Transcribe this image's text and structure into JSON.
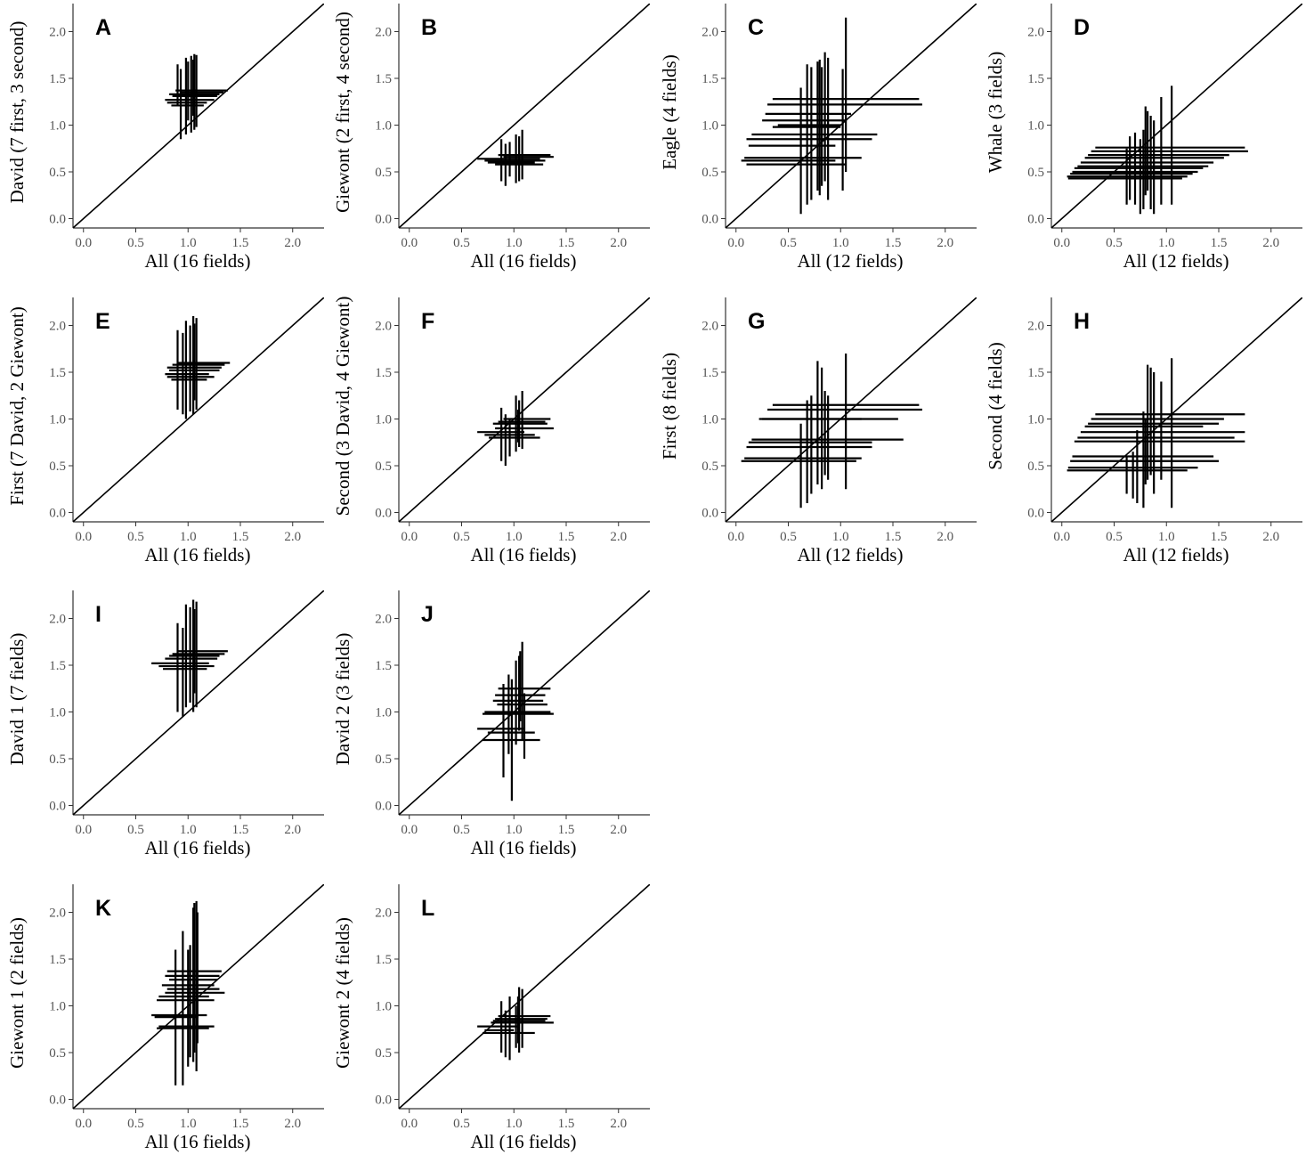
{
  "figure": {
    "description_panels": 12
  },
  "axis_defaults": {
    "xlim": [
      -0.1,
      2.3
    ],
    "ylim": [
      -0.1,
      2.3
    ],
    "ticks": [
      0.0,
      0.5,
      1.0,
      1.5,
      2.0
    ],
    "tick_labels": [
      "0.0",
      "0.5",
      "1.0",
      "1.5",
      "2.0"
    ]
  },
  "colors": {
    "ink": "#000000",
    "axis": "#333333",
    "tick_text": "#555555"
  },
  "chart_data": [
    {
      "id": "A",
      "type": "scatter",
      "letter": "A",
      "xlabel": "All (16 fields)",
      "ylabel": "David (7 first, 3 second)",
      "diagonal": "y = x",
      "hbars": [
        [
          0.88,
          1.38,
          1.37
        ],
        [
          0.92,
          1.34,
          1.35
        ],
        [
          0.82,
          1.3,
          1.33
        ],
        [
          0.85,
          1.28,
          1.31
        ],
        [
          0.78,
          1.25,
          1.27
        ],
        [
          0.8,
          1.18,
          1.24
        ],
        [
          0.84,
          1.15,
          1.21
        ]
      ],
      "vbars": [
        [
          0.9,
          1.2,
          1.65
        ],
        [
          0.93,
          0.85,
          1.6
        ],
        [
          0.98,
          0.9,
          1.72
        ],
        [
          1.0,
          1.05,
          1.68
        ],
        [
          1.03,
          0.92,
          1.74
        ],
        [
          1.06,
          0.95,
          1.76
        ],
        [
          1.08,
          0.98,
          1.75
        ],
        [
          1.05,
          1.1,
          1.7
        ]
      ]
    },
    {
      "id": "B",
      "type": "scatter",
      "letter": "B",
      "xlabel": "All (16 fields)",
      "ylabel": "Giewont (2 first, 4 second)",
      "diagonal": "y = x",
      "hbars": [
        [
          0.85,
          1.35,
          0.68
        ],
        [
          0.9,
          1.38,
          0.66
        ],
        [
          0.65,
          1.25,
          0.64
        ],
        [
          0.72,
          1.3,
          0.62
        ],
        [
          0.75,
          1.2,
          0.6
        ],
        [
          0.82,
          1.28,
          0.58
        ]
      ],
      "vbars": [
        [
          0.88,
          0.4,
          0.85
        ],
        [
          0.92,
          0.35,
          0.8
        ],
        [
          0.96,
          0.45,
          0.82
        ],
        [
          1.02,
          0.38,
          0.9
        ],
        [
          1.05,
          0.4,
          0.88
        ],
        [
          1.08,
          0.42,
          0.95
        ]
      ]
    },
    {
      "id": "C",
      "type": "scatter",
      "letter": "C",
      "xlabel": "All (12 fields)",
      "ylabel": "Eagle (4 fields)",
      "diagonal": "y = x",
      "hbars": [
        [
          0.35,
          1.75,
          1.28
        ],
        [
          0.3,
          1.78,
          1.22
        ],
        [
          0.28,
          1.1,
          1.12
        ],
        [
          0.25,
          1.05,
          1.05
        ],
        [
          0.4,
          1.0,
          1.0
        ],
        [
          0.35,
          1.0,
          0.98
        ],
        [
          0.15,
          1.35,
          0.9
        ],
        [
          0.1,
          1.3,
          0.85
        ],
        [
          0.12,
          0.95,
          0.78
        ],
        [
          0.08,
          1.2,
          0.65
        ],
        [
          0.05,
          0.95,
          0.62
        ],
        [
          0.1,
          1.05,
          0.58
        ]
      ],
      "vbars": [
        [
          0.62,
          0.05,
          1.4
        ],
        [
          0.68,
          0.15,
          1.65
        ],
        [
          0.72,
          0.2,
          1.62
        ],
        [
          0.78,
          0.3,
          1.68
        ],
        [
          0.8,
          0.25,
          1.7
        ],
        [
          0.82,
          0.35,
          1.62
        ],
        [
          0.85,
          0.4,
          1.78
        ],
        [
          0.88,
          0.2,
          1.72
        ],
        [
          1.02,
          0.3,
          1.6
        ],
        [
          1.05,
          0.5,
          2.15
        ]
      ]
    },
    {
      "id": "D",
      "type": "scatter",
      "letter": "D",
      "xlabel": "All (12 fields)",
      "ylabel": "Whale (3 fields)",
      "diagonal": "y = x",
      "hbars": [
        [
          0.32,
          1.75,
          0.76
        ],
        [
          0.28,
          1.78,
          0.72
        ],
        [
          0.25,
          1.6,
          0.68
        ],
        [
          0.22,
          1.55,
          0.65
        ],
        [
          0.18,
          1.45,
          0.6
        ],
        [
          0.15,
          1.4,
          0.56
        ],
        [
          0.12,
          1.35,
          0.54
        ],
        [
          0.1,
          1.3,
          0.5
        ],
        [
          0.08,
          1.25,
          0.48
        ],
        [
          0.05,
          1.2,
          0.45
        ],
        [
          0.06,
          1.15,
          0.43
        ]
      ],
      "vbars": [
        [
          0.62,
          0.15,
          0.75
        ],
        [
          0.65,
          0.2,
          0.88
        ],
        [
          0.7,
          0.15,
          0.92
        ],
        [
          0.75,
          0.05,
          0.85
        ],
        [
          0.78,
          0.1,
          0.95
        ],
        [
          0.8,
          0.25,
          1.2
        ],
        [
          0.82,
          0.3,
          1.15
        ],
        [
          0.85,
          0.1,
          1.1
        ],
        [
          0.88,
          0.05,
          1.05
        ],
        [
          0.95,
          0.15,
          1.3
        ],
        [
          1.05,
          0.15,
          1.42
        ]
      ]
    },
    {
      "id": "E",
      "type": "scatter",
      "letter": "E",
      "xlabel": "All (16 fields)",
      "ylabel": "First (7 David, 2 Giewont)",
      "diagonal": "y = x",
      "hbars": [
        [
          0.9,
          1.4,
          1.6
        ],
        [
          0.85,
          1.35,
          1.58
        ],
        [
          0.8,
          1.32,
          1.55
        ],
        [
          0.82,
          1.3,
          1.52
        ],
        [
          0.78,
          1.2,
          1.48
        ],
        [
          0.8,
          1.25,
          1.45
        ],
        [
          0.84,
          1.18,
          1.42
        ]
      ],
      "vbars": [
        [
          0.9,
          1.1,
          1.95
        ],
        [
          0.95,
          1.05,
          1.92
        ],
        [
          0.98,
          1.0,
          2.05
        ],
        [
          1.02,
          1.08,
          2.0
        ],
        [
          1.05,
          1.05,
          2.1
        ],
        [
          1.08,
          1.1,
          2.08
        ],
        [
          1.06,
          1.2,
          2.02
        ]
      ]
    },
    {
      "id": "F",
      "type": "scatter",
      "letter": "F",
      "xlabel": "All (16 fields)",
      "ylabel": "Second (3 David, 4 Giewont)",
      "diagonal": "y = x",
      "hbars": [
        [
          0.9,
          1.35,
          1.0
        ],
        [
          0.85,
          1.3,
          0.97
        ],
        [
          0.8,
          1.32,
          0.95
        ],
        [
          0.82,
          1.38,
          0.9
        ],
        [
          0.65,
          1.1,
          0.86
        ],
        [
          0.72,
          1.2,
          0.83
        ],
        [
          0.76,
          1.25,
          0.8
        ]
      ],
      "vbars": [
        [
          0.88,
          0.55,
          1.12
        ],
        [
          0.92,
          0.5,
          1.05
        ],
        [
          0.96,
          0.6,
          1.0
        ],
        [
          1.02,
          0.65,
          1.25
        ],
        [
          1.05,
          0.7,
          1.2
        ],
        [
          1.08,
          0.68,
          1.3
        ],
        [
          1.04,
          0.75,
          1.1
        ]
      ]
    },
    {
      "id": "G",
      "type": "scatter",
      "letter": "G",
      "xlabel": "All (12 fields)",
      "ylabel": "First (8 fields)",
      "diagonal": "y = x",
      "hbars": [
        [
          0.35,
          1.75,
          1.15
        ],
        [
          0.3,
          1.78,
          1.1
        ],
        [
          0.25,
          1.2,
          1.0
        ],
        [
          0.22,
          1.55,
          1.0
        ],
        [
          0.15,
          1.6,
          0.78
        ],
        [
          0.12,
          1.3,
          0.75
        ],
        [
          0.1,
          1.3,
          0.7
        ],
        [
          0.08,
          1.2,
          0.58
        ],
        [
          0.05,
          1.15,
          0.55
        ]
      ],
      "vbars": [
        [
          0.62,
          0.05,
          0.95
        ],
        [
          0.68,
          0.1,
          1.2
        ],
        [
          0.72,
          0.2,
          1.25
        ],
        [
          0.78,
          0.3,
          1.62
        ],
        [
          0.82,
          0.25,
          1.55
        ],
        [
          0.85,
          0.4,
          1.3
        ],
        [
          0.88,
          0.35,
          1.25
        ],
        [
          1.05,
          0.25,
          1.7
        ]
      ]
    },
    {
      "id": "H",
      "type": "scatter",
      "letter": "H",
      "xlabel": "All (12 fields)",
      "ylabel": "Second (4 fields)",
      "diagonal": "y = x",
      "hbars": [
        [
          0.32,
          1.75,
          1.05
        ],
        [
          0.28,
          1.55,
          1.0
        ],
        [
          0.25,
          1.5,
          0.95
        ],
        [
          0.22,
          1.35,
          0.92
        ],
        [
          0.18,
          1.75,
          0.86
        ],
        [
          0.15,
          1.65,
          0.8
        ],
        [
          0.12,
          1.75,
          0.76
        ],
        [
          0.1,
          1.45,
          0.6
        ],
        [
          0.08,
          1.5,
          0.55
        ],
        [
          0.06,
          1.3,
          0.48
        ],
        [
          0.05,
          1.2,
          0.45
        ]
      ],
      "vbars": [
        [
          0.62,
          0.2,
          0.6
        ],
        [
          0.68,
          0.15,
          0.65
        ],
        [
          0.72,
          0.1,
          0.88
        ],
        [
          0.78,
          0.05,
          1.08
        ],
        [
          0.8,
          0.3,
          1.0
        ],
        [
          0.82,
          0.35,
          1.58
        ],
        [
          0.85,
          0.4,
          1.55
        ],
        [
          0.88,
          0.2,
          1.5
        ],
        [
          0.95,
          0.35,
          1.4
        ],
        [
          1.05,
          0.05,
          1.65
        ]
      ]
    },
    {
      "id": "I",
      "type": "scatter",
      "letter": "I",
      "xlabel": "All (16 fields)",
      "ylabel": "David 1 (7 fields)",
      "diagonal": "y = x",
      "hbars": [
        [
          0.9,
          1.38,
          1.65
        ],
        [
          0.85,
          1.35,
          1.62
        ],
        [
          0.82,
          1.3,
          1.6
        ],
        [
          0.78,
          1.28,
          1.57
        ],
        [
          0.65,
          1.2,
          1.52
        ],
        [
          0.72,
          1.25,
          1.49
        ],
        [
          0.76,
          1.18,
          1.46
        ]
      ],
      "vbars": [
        [
          0.9,
          1.0,
          1.95
        ],
        [
          0.95,
          0.95,
          1.9
        ],
        [
          0.98,
          1.05,
          2.15
        ],
        [
          1.02,
          1.1,
          2.12
        ],
        [
          1.05,
          1.0,
          2.2
        ],
        [
          1.08,
          1.05,
          2.18
        ],
        [
          1.06,
          1.2,
          2.1
        ]
      ]
    },
    {
      "id": "J",
      "type": "scatter",
      "letter": "J",
      "xlabel": "All (16 fields)",
      "ylabel": "David 2 (3 fields)",
      "diagonal": "y = x",
      "hbars": [
        [
          0.85,
          1.35,
          1.25
        ],
        [
          0.82,
          1.3,
          1.18
        ],
        [
          0.8,
          1.28,
          1.12
        ],
        [
          0.84,
          1.32,
          1.08
        ],
        [
          0.72,
          1.35,
          1.0
        ],
        [
          0.7,
          1.38,
          0.98
        ],
        [
          0.65,
          1.1,
          0.82
        ],
        [
          0.75,
          1.2,
          0.78
        ],
        [
          0.7,
          1.25,
          0.7
        ]
      ],
      "vbars": [
        [
          0.9,
          0.3,
          1.3
        ],
        [
          0.95,
          0.55,
          1.4
        ],
        [
          0.98,
          0.05,
          1.35
        ],
        [
          1.02,
          0.65,
          1.55
        ],
        [
          1.05,
          0.8,
          1.6
        ],
        [
          1.08,
          0.7,
          1.75
        ],
        [
          1.1,
          0.5,
          1.2
        ],
        [
          1.06,
          0.9,
          1.65
        ]
      ]
    },
    {
      "id": "K",
      "type": "scatter",
      "letter": "K",
      "xlabel": "All (16 fields)",
      "ylabel": "Giewont 1 (2 fields)",
      "diagonal": "y = x",
      "hbars": [
        [
          0.8,
          1.32,
          1.37
        ],
        [
          0.78,
          1.3,
          1.32
        ],
        [
          0.82,
          1.28,
          1.28
        ],
        [
          0.75,
          1.25,
          1.22
        ],
        [
          0.8,
          1.3,
          1.18
        ],
        [
          0.78,
          1.35,
          1.14
        ],
        [
          0.72,
          1.2,
          1.1
        ],
        [
          0.7,
          1.25,
          1.06
        ],
        [
          0.65,
          1.18,
          0.9
        ],
        [
          0.68,
          1.1,
          0.88
        ],
        [
          0.72,
          1.25,
          0.78
        ],
        [
          0.7,
          1.2,
          0.76
        ]
      ],
      "vbars": [
        [
          0.88,
          0.15,
          1.6
        ],
        [
          0.95,
          0.15,
          1.8
        ],
        [
          1.0,
          0.35,
          1.6
        ],
        [
          1.02,
          0.45,
          1.65
        ],
        [
          1.05,
          0.4,
          2.05
        ],
        [
          1.08,
          0.3,
          2.12
        ],
        [
          1.06,
          0.5,
          2.1
        ],
        [
          1.09,
          0.6,
          2.0
        ]
      ]
    },
    {
      "id": "L",
      "type": "scatter",
      "letter": "L",
      "xlabel": "All (16 fields)",
      "ylabel": "Giewont 2 (4 fields)",
      "diagonal": "y = x",
      "hbars": [
        [
          0.85,
          1.35,
          0.89
        ],
        [
          0.82,
          1.32,
          0.86
        ],
        [
          0.8,
          1.3,
          0.84
        ],
        [
          0.78,
          1.38,
          0.82
        ],
        [
          0.65,
          1.05,
          0.78
        ],
        [
          0.72,
          1.0,
          0.74
        ],
        [
          0.7,
          1.2,
          0.71
        ]
      ],
      "vbars": [
        [
          0.88,
          0.5,
          1.05
        ],
        [
          0.92,
          0.45,
          0.95
        ],
        [
          0.96,
          0.42,
          1.1
        ],
        [
          1.02,
          0.55,
          1.0
        ],
        [
          1.05,
          0.5,
          1.2
        ],
        [
          1.08,
          0.55,
          1.18
        ],
        [
          1.04,
          0.6,
          1.1
        ]
      ]
    }
  ]
}
